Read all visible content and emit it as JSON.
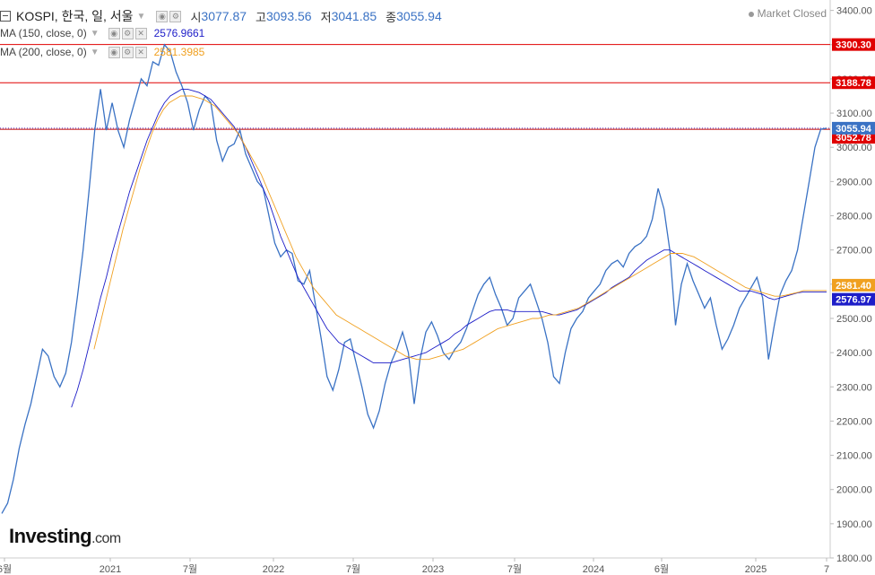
{
  "header": {
    "symbol": "KOSPI, 한국, 일, 서울",
    "open_label": "시",
    "open": "3077.87",
    "high_label": "고",
    "high": "3093.56",
    "low_label": "저",
    "low": "3041.85",
    "close_label": "종",
    "close": "3055.94",
    "status": "Market Closed"
  },
  "ma150": {
    "label": "MA (150, close, 0)",
    "value": "2576.9661",
    "color": "#1d1dc8"
  },
  "ma200": {
    "label": "MA (200, close, 0)",
    "value": "2581.3985",
    "color": "#f0a020"
  },
  "logo": {
    "brand": "Investing",
    "suffix": ".com"
  },
  "chart_data": {
    "type": "line",
    "y_axis": {
      "ticks": [
        1800,
        1900,
        2000,
        2100,
        2200,
        2300,
        2400,
        2500,
        2600,
        2700,
        2800,
        2900,
        3000,
        3100,
        3200,
        3300,
        3400
      ],
      "range": [
        1800,
        3420
      ]
    },
    "x_axis": {
      "ticks": [
        "6월",
        "2021",
        "7월",
        "2022",
        "7월",
        "2023",
        "7월",
        "2024",
        "6월",
        "2025",
        "7"
      ]
    },
    "series": [
      {
        "color": "#3a72c4",
        "values": [
          1930,
          1960,
          2030,
          2120,
          2190,
          2250,
          2330,
          2410,
          2390,
          2330,
          2300,
          2340,
          2430,
          2560,
          2700,
          2870,
          3050,
          3170,
          3050,
          3130,
          3050,
          3000,
          3080,
          3140,
          3200,
          3180,
          3250,
          3240,
          3300,
          3280,
          3220,
          3180,
          3130,
          3050,
          3110,
          3150,
          3130,
          3020,
          2960,
          3000,
          3010,
          3050,
          2980,
          2940,
          2900,
          2880,
          2800,
          2720,
          2680,
          2700,
          2690,
          2610,
          2600,
          2640,
          2540,
          2440,
          2330,
          2290,
          2350,
          2430,
          2440,
          2370,
          2300,
          2220,
          2180,
          2230,
          2310,
          2370,
          2410,
          2460,
          2400,
          2250,
          2380,
          2460,
          2490,
          2450,
          2400,
          2380,
          2410,
          2430,
          2470,
          2520,
          2570,
          2600,
          2620,
          2570,
          2530,
          2480,
          2500,
          2560,
          2580,
          2600,
          2550,
          2500,
          2430,
          2330,
          2310,
          2400,
          2470,
          2500,
          2520,
          2560,
          2580,
          2600,
          2640,
          2660,
          2670,
          2650,
          2690,
          2710,
          2720,
          2740,
          2790,
          2880,
          2820,
          2700,
          2480,
          2600,
          2660,
          2610,
          2570,
          2530,
          2560,
          2480,
          2410,
          2440,
          2480,
          2530,
          2560,
          2590,
          2620,
          2560,
          2380,
          2480,
          2570,
          2610,
          2640,
          2700,
          2800,
          2900,
          3000,
          3052.78,
          3055.94
        ]
      },
      {
        "name": "MA (150, close, 0)",
        "color": "#1d1dc8",
        "values": [
          null,
          null,
          null,
          null,
          null,
          null,
          null,
          null,
          null,
          null,
          null,
          null,
          2240,
          2290,
          2350,
          2420,
          2490,
          2560,
          2620,
          2690,
          2750,
          2810,
          2870,
          2920,
          2970,
          3020,
          3060,
          3100,
          3130,
          3150,
          3160,
          3170,
          3170,
          3165,
          3160,
          3150,
          3140,
          3120,
          3100,
          3080,
          3060,
          3030,
          3000,
          2960,
          2920,
          2880,
          2840,
          2790,
          2740,
          2700,
          2660,
          2620,
          2590,
          2560,
          2530,
          2500,
          2470,
          2450,
          2430,
          2420,
          2410,
          2400,
          2390,
          2380,
          2370,
          2370,
          2370,
          2370,
          2375,
          2380,
          2385,
          2390,
          2395,
          2400,
          2410,
          2420,
          2430,
          2440,
          2455,
          2465,
          2480,
          2490,
          2500,
          2510,
          2520,
          2525,
          2525,
          2525,
          2520,
          2520,
          2520,
          2520,
          2520,
          2520,
          2515,
          2510,
          2510,
          2515,
          2520,
          2525,
          2535,
          2545,
          2555,
          2565,
          2575,
          2590,
          2600,
          2610,
          2620,
          2640,
          2655,
          2670,
          2680,
          2690,
          2700,
          2700,
          2690,
          2680,
          2670,
          2660,
          2650,
          2640,
          2630,
          2620,
          2610,
          2600,
          2590,
          2580,
          2580,
          2580,
          2575,
          2570,
          2560,
          2555,
          2560,
          2565,
          2570,
          2575,
          2576.97,
          2576.97,
          2576.97,
          2576.97,
          2576.97
        ]
      },
      {
        "name": "MA (200, close, 0)",
        "color": "#f0a020",
        "values": [
          null,
          null,
          null,
          null,
          null,
          null,
          null,
          null,
          null,
          null,
          null,
          null,
          null,
          null,
          null,
          null,
          2410,
          2480,
          2550,
          2620,
          2690,
          2760,
          2820,
          2880,
          2940,
          2990,
          3040,
          3080,
          3110,
          3130,
          3140,
          3150,
          3150,
          3150,
          3145,
          3140,
          3130,
          3120,
          3100,
          3080,
          3060,
          3040,
          3010,
          2980,
          2950,
          2920,
          2880,
          2840,
          2800,
          2760,
          2720,
          2680,
          2650,
          2620,
          2590,
          2570,
          2550,
          2530,
          2510,
          2500,
          2490,
          2480,
          2470,
          2460,
          2450,
          2440,
          2430,
          2420,
          2410,
          2400,
          2390,
          2385,
          2380,
          2380,
          2380,
          2385,
          2390,
          2395,
          2400,
          2405,
          2410,
          2420,
          2430,
          2440,
          2450,
          2460,
          2470,
          2475,
          2480,
          2485,
          2490,
          2495,
          2500,
          2500,
          2505,
          2510,
          2510,
          2515,
          2520,
          2525,
          2530,
          2540,
          2550,
          2560,
          2570,
          2580,
          2590,
          2600,
          2610,
          2620,
          2630,
          2640,
          2650,
          2660,
          2670,
          2680,
          2690,
          2690,
          2690,
          2685,
          2680,
          2670,
          2660,
          2650,
          2640,
          2630,
          2620,
          2610,
          2600,
          2590,
          2585,
          2580,
          2575,
          2570,
          2565,
          2565,
          2568,
          2572,
          2576,
          2581.4,
          2581.4,
          2581.4,
          2581.4,
          2581.4
        ]
      }
    ],
    "horizontal_lines": [
      {
        "value": 3300.3,
        "label": "3300.30",
        "color": "#e00000"
      },
      {
        "value": 3188.78,
        "label": "3188.78",
        "color": "#e00000"
      },
      {
        "value": 3052.78,
        "label": "3052.78",
        "color": "#c00000"
      }
    ],
    "price_tags": [
      {
        "value": 3055.94,
        "label": "3055.94",
        "color": "#3a72c4"
      },
      {
        "value": 2581.4,
        "label": "2581.40",
        "color": "#f0a020"
      },
      {
        "value": 2576.97,
        "label": "2576.97",
        "color": "#1d1dc8"
      }
    ]
  }
}
